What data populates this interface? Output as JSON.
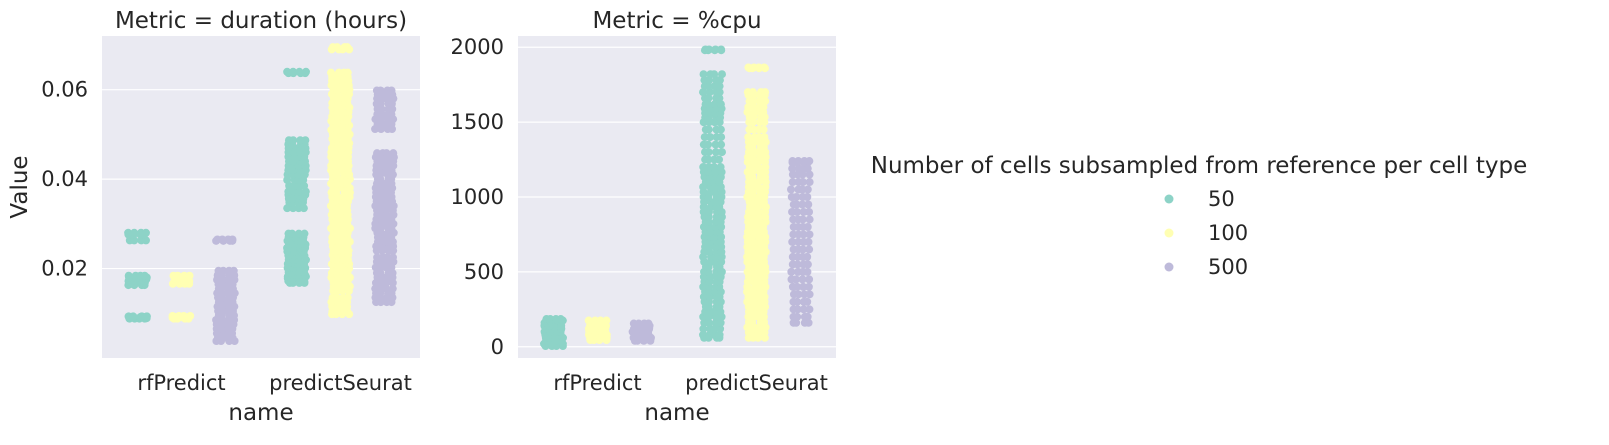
{
  "chart_data": [
    {
      "type": "scatter",
      "subtype": "strip",
      "title": "Metric = duration (hours)",
      "xlabel": "name",
      "ylabel": "Value",
      "categories": [
        "rfPredict",
        "predictSeurat"
      ],
      "ylim": [
        0.0,
        0.072
      ],
      "yticks": [
        0.02,
        0.04,
        0.06
      ],
      "ytick_labels": [
        "0.02",
        "0.04",
        "0.06"
      ],
      "grid": true,
      "series": [
        {
          "name": "50",
          "color": "#8dd3c7",
          "values": [
            [
              0.0088,
              0.0089,
              0.009,
              0.0091,
              0.0092,
              0.0093,
              0.0163,
              0.0168,
              0.0172,
              0.0176,
              0.018,
              0.0184,
              0.0263,
              0.0276,
              0.028
            ],
            [
              0.0168,
              0.0172,
              0.0178,
              0.0182,
              0.0186,
              0.0192,
              0.0238,
              0.0246,
              0.0254,
              0.0262,
              0.027,
              0.0278,
              0.0335,
              0.0348,
              0.0356,
              0.0365,
              0.0372,
              0.0398,
              0.041,
              0.042,
              0.043,
              0.044,
              0.045,
              0.046,
              0.0487,
              0.0637,
              0.064
            ]
          ]
        },
        {
          "name": "100",
          "color": "#ffffb3",
          "values": [
            [
              0.0088,
              0.009,
              0.0092,
              0.0094,
              0.0166,
              0.0172,
              0.0178,
              0.0184
            ],
            [
              0.0098,
              0.0104,
              0.0115,
              0.0135,
              0.015,
              0.016,
              0.017,
              0.018,
              0.019,
              0.02,
              0.024,
              0.026,
              0.028,
              0.03,
              0.032,
              0.034,
              0.036,
              0.038,
              0.04,
              0.042,
              0.044,
              0.046,
              0.048,
              0.05,
              0.052,
              0.054,
              0.056,
              0.058,
              0.06,
              0.062,
              0.0638,
              0.069,
              0.0695
            ]
          ]
        },
        {
          "name": "500",
          "color": "#bebada",
          "values": [
            [
              0.0038,
              0.0045,
              0.0055,
              0.0065,
              0.0075,
              0.0085,
              0.0095,
              0.0105,
              0.0115,
              0.0125,
              0.0135,
              0.0145,
              0.0155,
              0.0165,
              0.0175,
              0.0185,
              0.0195,
              0.0262,
              0.0265
            ],
            [
              0.0125,
              0.0155,
              0.0168,
              0.018,
              0.019,
              0.0215,
              0.0225,
              0.024,
              0.026,
              0.028,
              0.03,
              0.032,
              0.034,
              0.036,
              0.038,
              0.04,
              0.042,
              0.044,
              0.0458,
              0.0512,
              0.0545,
              0.058,
              0.0598
            ]
          ]
        }
      ]
    },
    {
      "type": "scatter",
      "subtype": "strip",
      "title": "Metric = %cpu",
      "xlabel": "name",
      "ylabel": "",
      "categories": [
        "rfPredict",
        "predictSeurat"
      ],
      "ylim": [
        -75,
        2075
      ],
      "yticks": [
        0,
        500,
        1000,
        1500,
        2000
      ],
      "ytick_labels": [
        "0",
        "500",
        "1000",
        "1500",
        "2000"
      ],
      "grid": true,
      "series": [
        {
          "name": "50",
          "color": "#8dd3c7",
          "values": [
            [
              5,
              20,
              40,
              60,
              80,
              100,
              120,
              140,
              160,
              175,
              185
            ],
            [
              60,
              80,
              120,
              200,
              300,
              400,
              500,
              600,
              700,
              800,
              900,
              1000,
              1100,
              1200,
              1250,
              1300,
              1350,
              1400,
              1450,
              1500,
              1560,
              1620,
              1660,
              1700,
              1780,
              1820,
              1980,
              1985
            ]
          ]
        },
        {
          "name": "100",
          "color": "#ffffb3",
          "values": [
            [
              45,
              60,
              80,
              100,
              120,
              140,
              160,
              175
            ],
            [
              60,
              130,
              200,
              300,
              400,
              500,
              600,
              700,
              800,
              900,
              1000,
              1100,
              1200,
              1300,
              1400,
              1450,
              1500,
              1600,
              1680,
              1700,
              1860,
              1865
            ]
          ]
        },
        {
          "name": "500",
          "color": "#bebada",
          "values": [
            [
              40,
              60,
              80,
              100,
              120,
              140,
              155
            ],
            [
              160,
              200,
              250,
              300,
              350,
              400,
              450,
              500,
              550,
              600,
              650,
              700,
              750,
              800,
              850,
              900,
              950,
              1000,
              1050,
              1100,
              1150,
              1230,
              1240
            ]
          ]
        }
      ]
    }
  ],
  "legend": {
    "title": "Number of cells subsampled from reference per cell type",
    "placement": "right",
    "entries": [
      {
        "label": "50",
        "color": "#8dd3c7"
      },
      {
        "label": "100",
        "color": "#ffffb3"
      },
      {
        "label": "500",
        "color": "#bebada"
      }
    ]
  },
  "style": {
    "panel_bg": "#eaeaf2",
    "grid_color": "#ffffff",
    "text_color": "#262626"
  }
}
